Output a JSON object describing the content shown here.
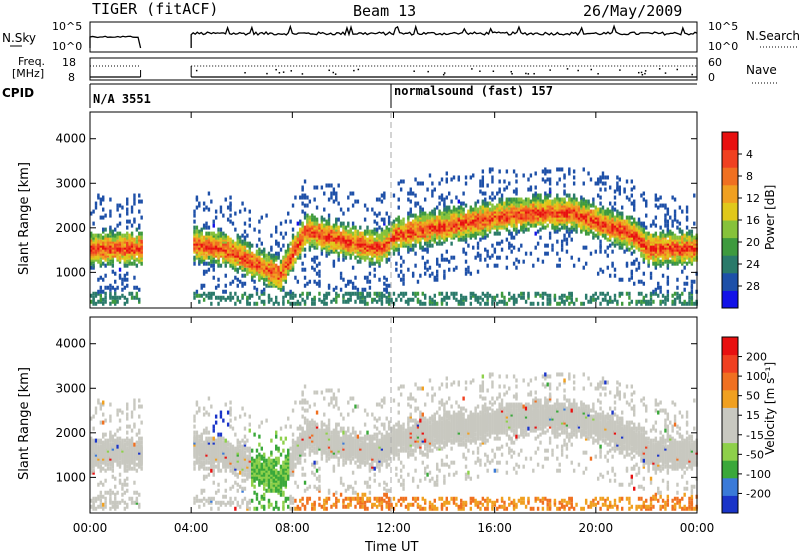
{
  "header": {
    "radar": "TIGER (fitACF)",
    "beam": "Beam 13",
    "date": "26/May/2009"
  },
  "status_panels": {
    "nsky": {
      "label": "N.Sky",
      "right_label": "N.Search",
      "left_ticks": [
        "10^5",
        "10^0"
      ],
      "right_ticks": [
        "10^5",
        "10^0"
      ]
    },
    "freq": {
      "label_line1": "Freq.",
      "label_line2": "[MHz]",
      "right_label": "Nave",
      "left_ticks": [
        "18",
        "8"
      ],
      "right_ticks": [
        "60",
        "0"
      ]
    },
    "cpid": {
      "label": "CPID",
      "segments": [
        {
          "text": "N/A 3551",
          "start_hour": 0
        },
        {
          "text": "normalsound (fast) 157",
          "start_hour": 12
        }
      ]
    }
  },
  "chart_data": [
    {
      "type": "heatmap",
      "panel": "power",
      "ylabel": "Slant Range [km]",
      "yticks": [
        "1000",
        "2000",
        "3000",
        "4000"
      ],
      "ylim": [
        200,
        4600
      ],
      "xlim_hours": [
        0,
        24
      ],
      "colorbar": {
        "label": "Power [dB]",
        "ticks": [
          "4",
          "8",
          "12",
          "16",
          "20",
          "24",
          "28"
        ],
        "colors": [
          "#1212e8",
          "#1e50a8",
          "#2a7a6a",
          "#3e9a3e",
          "#86c23a",
          "#e0c81a",
          "#f0a020",
          "#f07020",
          "#f04020",
          "#e81010"
        ]
      },
      "data_gaps_hours": [
        [
          2.0,
          4.0
        ]
      ],
      "scatter_band_center_km": [
        [
          0.0,
          1500
        ],
        [
          2.0,
          1500
        ],
        [
          4.0,
          1600
        ],
        [
          5.5,
          1450
        ],
        [
          6.5,
          1150
        ],
        [
          7.5,
          900
        ],
        [
          8.5,
          1900
        ],
        [
          10.5,
          1600
        ],
        [
          11.5,
          1500
        ],
        [
          12.0,
          1800
        ],
        [
          14.0,
          2000
        ],
        [
          16.0,
          2200
        ],
        [
          17.5,
          2300
        ],
        [
          19.0,
          2300
        ],
        [
          20.0,
          2100
        ],
        [
          21.5,
          1800
        ],
        [
          22.0,
          1500
        ],
        [
          24.0,
          1500
        ]
      ]
    },
    {
      "type": "heatmap",
      "panel": "velocity",
      "ylabel": "Slant Range [km]",
      "yticks": [
        "1000",
        "2000",
        "3000",
        "4000"
      ],
      "ylim": [
        200,
        4600
      ],
      "xlim_hours": [
        0,
        24
      ],
      "colorbar": {
        "label": "Velocity [m s⁻¹]",
        "ticks": [
          "200",
          "100",
          "50",
          "15",
          "-15",
          "-50",
          "-100",
          "-200"
        ],
        "colors": [
          "#1a34c8",
          "#3a7ad8",
          "#3aa83a",
          "#8ed04a",
          "#c8c8c0",
          "#c8c8c0",
          "#f0a020",
          "#f07020",
          "#f04020",
          "#e81010"
        ]
      },
      "data_gaps_hours": [
        [
          2.0,
          4.0
        ]
      ]
    }
  ],
  "x_axis": {
    "label": "Time UT",
    "ticks": [
      "00:00",
      "04:00",
      "08:00",
      "12:00",
      "16:00",
      "20:00",
      "00:00"
    ]
  }
}
